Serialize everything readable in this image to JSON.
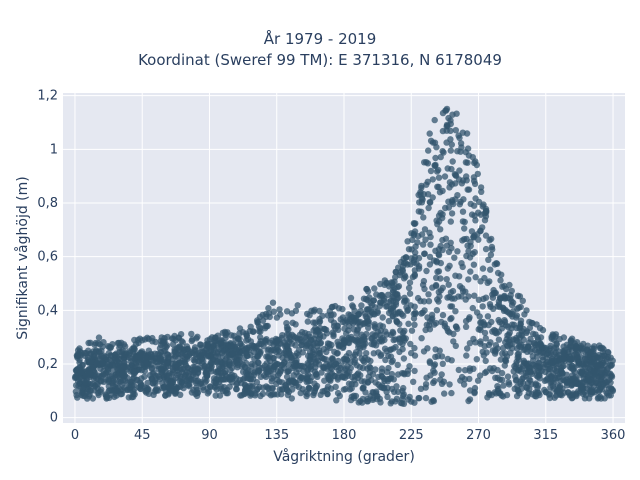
{
  "chart_data": {
    "type": "scatter",
    "title_line1": "År 1979 - 2019",
    "title_line2": "Koordinat (Sweref 99 TM): E 371316, N 6178049",
    "xlabel": "Vågriktning (grader)",
    "ylabel": "Signifikant våghöjd (m)",
    "xlim": [
      -8,
      368
    ],
    "ylim": [
      -0.02,
      1.21
    ],
    "x_ticks": [
      0,
      45,
      90,
      135,
      180,
      225,
      270,
      315,
      360
    ],
    "x_tick_labels": [
      "0",
      "45",
      "90",
      "135",
      "180",
      "225",
      "270",
      "315",
      "360"
    ],
    "y_ticks": [
      0,
      0.2,
      0.4,
      0.6,
      0.8,
      1.0,
      1.2
    ],
    "y_tick_labels": [
      "0",
      "0,2",
      "0,4",
      "0,6",
      "0,8",
      "1",
      "1,2"
    ],
    "marker_color": "#33566e",
    "plot_background": "#e5e8f1",
    "grid": true,
    "envelope": {
      "direction": [
        0,
        15,
        30,
        45,
        60,
        75,
        90,
        105,
        120,
        135,
        150,
        165,
        180,
        195,
        205,
        215,
        220,
        225,
        230,
        235,
        240,
        245,
        250,
        255,
        260,
        265,
        270,
        275,
        280,
        285,
        290,
        300,
        310,
        320,
        330,
        340,
        350,
        360
      ],
      "typical_min": [
        0.07,
        0.07,
        0.07,
        0.08,
        0.08,
        0.08,
        0.08,
        0.08,
        0.08,
        0.07,
        0.07,
        0.07,
        0.06,
        0.05,
        0.05,
        0.05,
        0.05,
        0.05,
        0.05,
        0.05,
        0.05,
        0.05,
        0.06,
        0.06,
        0.06,
        0.06,
        0.06,
        0.06,
        0.06,
        0.06,
        0.06,
        0.07,
        0.07,
        0.07,
        0.07,
        0.07,
        0.07,
        0.07
      ],
      "typical_max": [
        0.22,
        0.23,
        0.24,
        0.25,
        0.25,
        0.26,
        0.27,
        0.28,
        0.29,
        0.3,
        0.32,
        0.34,
        0.36,
        0.4,
        0.44,
        0.5,
        0.56,
        0.64,
        0.8,
        0.92,
        1.02,
        1.05,
        1.06,
        1.05,
        1.02,
        0.96,
        0.86,
        0.72,
        0.58,
        0.5,
        0.44,
        0.34,
        0.28,
        0.26,
        0.25,
        0.24,
        0.23,
        0.22
      ],
      "outlier_max": [
        0.25,
        0.3,
        0.28,
        0.3,
        0.3,
        0.32,
        0.3,
        0.33,
        0.35,
        0.45,
        0.42,
        0.4,
        0.44,
        0.48,
        0.5,
        0.56,
        0.62,
        0.7,
        0.85,
        1.0,
        1.15,
        1.16,
        1.15,
        1.14,
        1.1,
        1.02,
        0.92,
        0.78,
        0.62,
        0.54,
        0.5,
        0.44,
        0.34,
        0.32,
        0.3,
        0.28,
        0.27,
        0.26
      ]
    }
  }
}
